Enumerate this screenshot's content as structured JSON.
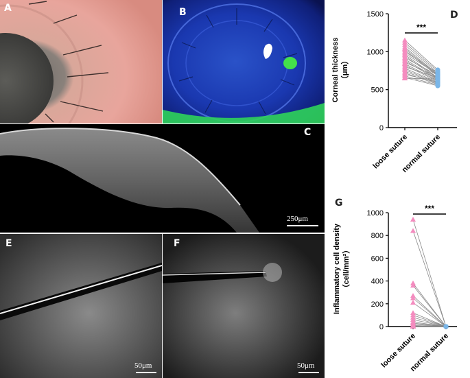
{
  "panels": {
    "A": {
      "label": "A"
    },
    "B": {
      "label": "B"
    },
    "C": {
      "label": "C",
      "scalebar": "250μm"
    },
    "D": {
      "label": "D"
    },
    "E": {
      "label": "E",
      "scalebar": "50μm"
    },
    "F": {
      "label": "F",
      "scalebar": "50μm"
    },
    "G": {
      "label": "G"
    }
  },
  "chart_data": [
    {
      "panel": "D",
      "type": "scatter",
      "ylabel_line1": "Corneal thickness",
      "ylabel_line2": "（μm）",
      "ylim": [
        0,
        1500
      ],
      "yticks": [
        "0",
        "500",
        "1000",
        "1500"
      ],
      "categories": [
        "loose suture",
        "normal suture"
      ],
      "significance": "***",
      "colors": {
        "loose": "#f48cbf",
        "normal": "#7ab6e8",
        "line": "#8a8a8a"
      },
      "pairs": [
        [
          1150,
          760
        ],
        [
          1120,
          740
        ],
        [
          1090,
          720
        ],
        [
          1060,
          700
        ],
        [
          1040,
          690
        ],
        [
          1020,
          680
        ],
        [
          1000,
          720
        ],
        [
          980,
          700
        ],
        [
          960,
          660
        ],
        [
          940,
          650
        ],
        [
          920,
          690
        ],
        [
          900,
          640
        ],
        [
          880,
          630
        ],
        [
          860,
          670
        ],
        [
          840,
          620
        ],
        [
          820,
          610
        ],
        [
          800,
          660
        ],
        [
          780,
          600
        ],
        [
          760,
          590
        ],
        [
          740,
          580
        ],
        [
          720,
          570
        ],
        [
          700,
          600
        ],
        [
          680,
          560
        ],
        [
          660,
          550
        ],
        [
          650,
          640
        ]
      ]
    },
    {
      "panel": "G",
      "type": "scatter",
      "ylabel_line1": "Inflammatory cell density",
      "ylabel_line2": "（cell/mm²）",
      "ylim": [
        0,
        1000
      ],
      "yticks": [
        "0",
        "200",
        "400",
        "600",
        "800",
        "1000"
      ],
      "categories": [
        "loose suture",
        "normal suture"
      ],
      "significance": "***",
      "colors": {
        "loose": "#f48cbf",
        "normal": "#7ab6e8",
        "line": "#8a8a8a"
      },
      "pairs": [
        [
          940,
          0
        ],
        [
          840,
          0
        ],
        [
          380,
          0
        ],
        [
          360,
          0
        ],
        [
          270,
          0
        ],
        [
          250,
          0
        ],
        [
          210,
          0
        ],
        [
          120,
          0
        ],
        [
          100,
          0
        ],
        [
          80,
          0
        ],
        [
          60,
          0
        ],
        [
          40,
          0
        ],
        [
          30,
          0
        ],
        [
          20,
          0
        ],
        [
          10,
          0
        ],
        [
          5,
          0
        ],
        [
          0,
          0
        ],
        [
          0,
          0
        ],
        [
          0,
          0
        ],
        [
          0,
          0
        ]
      ]
    }
  ]
}
